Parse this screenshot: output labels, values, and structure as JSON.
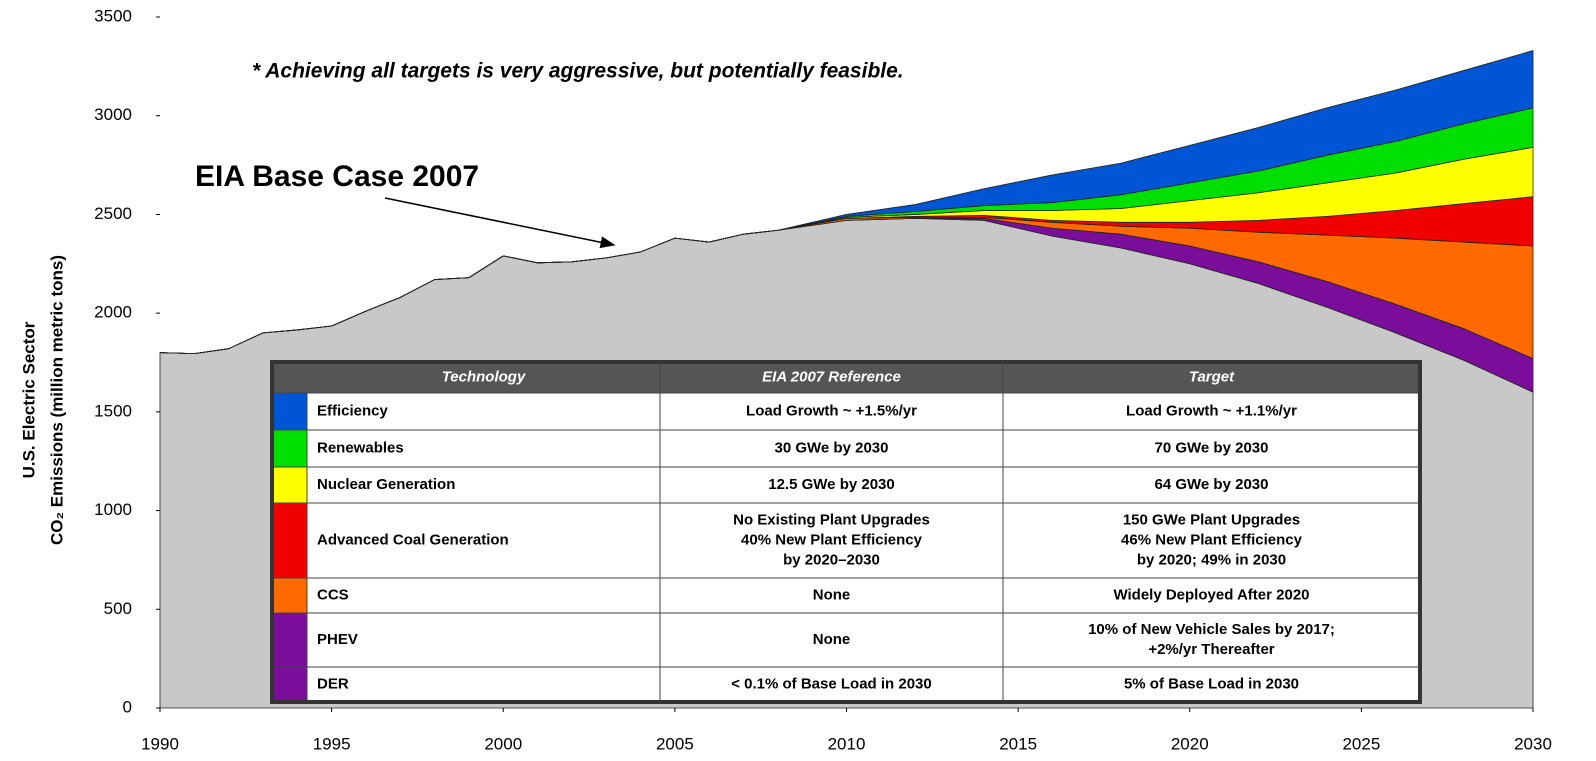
{
  "chart_data": {
    "type": "stacked_area",
    "ylabel": [
      "U.S. Electric Sector",
      "CO₂ Emissions (million metric tons)"
    ],
    "annotations": {
      "note": "* Achieving all targets is very aggressive, but potentially feasible.",
      "base_case": "EIA Base Case 2007"
    },
    "xlim": [
      1990,
      2030
    ],
    "xticks": [
      1990,
      1995,
      2000,
      2005,
      2010,
      2015,
      2020,
      2025,
      2030
    ],
    "ylim": [
      0,
      3500
    ],
    "yticks": [
      0,
      500,
      1000,
      1500,
      2000,
      2500,
      3000,
      3500
    ],
    "x": [
      1990,
      1991,
      1992,
      1993,
      1994,
      1995,
      1996,
      1997,
      1998,
      1999,
      2000,
      2001,
      2002,
      2003,
      2004,
      2005,
      2006,
      2007,
      2008,
      2010,
      2012,
      2014,
      2016,
      2018,
      2020,
      2022,
      2024,
      2026,
      2028,
      2030
    ],
    "series": [
      {
        "color": "#c8c8c8",
        "values": [
          1800,
          1795,
          1820,
          1900,
          1915,
          1935,
          2010,
          2080,
          2170,
          2180,
          2290,
          2255,
          2260,
          2280,
          2310,
          2380,
          2360,
          2400,
          2420,
          2470,
          2480,
          2470,
          2390,
          2330,
          2250,
          2150,
          2030,
          1900,
          1760,
          1600
        ]
      },
      {
        "color": "#7b0d9b",
        "values": [
          0,
          0,
          0,
          0,
          0,
          0,
          0,
          0,
          0,
          0,
          0,
          0,
          0,
          0,
          0,
          0,
          0,
          0,
          0,
          0,
          0,
          10,
          40,
          70,
          90,
          110,
          130,
          145,
          160,
          170
        ]
      },
      {
        "color": "#ff6a00",
        "values": [
          0,
          0,
          0,
          0,
          0,
          0,
          0,
          0,
          0,
          0,
          0,
          0,
          0,
          0,
          0,
          0,
          0,
          0,
          0,
          10,
          5,
          5,
          30,
          40,
          90,
          150,
          235,
          335,
          440,
          570
        ]
      },
      {
        "color": "#f00000",
        "values": [
          0,
          0,
          0,
          0,
          0,
          0,
          0,
          0,
          0,
          0,
          0,
          0,
          0,
          0,
          0,
          0,
          0,
          0,
          0,
          0,
          5,
          10,
          10,
          20,
          30,
          60,
          95,
          140,
          195,
          250
        ]
      },
      {
        "color": "#ffff00",
        "values": [
          0,
          0,
          0,
          0,
          0,
          0,
          0,
          0,
          0,
          0,
          0,
          0,
          0,
          0,
          0,
          0,
          0,
          0,
          0,
          5,
          10,
          25,
          50,
          70,
          110,
          140,
          170,
          190,
          225,
          250
        ]
      },
      {
        "color": "#00e000",
        "values": [
          0,
          0,
          0,
          0,
          0,
          0,
          0,
          0,
          0,
          0,
          0,
          0,
          0,
          0,
          0,
          0,
          0,
          0,
          0,
          5,
          15,
          25,
          40,
          70,
          90,
          110,
          140,
          160,
          180,
          200
        ]
      },
      {
        "color": "#0055d4",
        "values": [
          0,
          0,
          0,
          0,
          0,
          0,
          0,
          0,
          0,
          0,
          0,
          0,
          0,
          0,
          0,
          0,
          0,
          0,
          0,
          10,
          35,
          85,
          140,
          160,
          190,
          220,
          240,
          260,
          270,
          290
        ]
      }
    ],
    "table": {
      "header": [
        "Technology",
        "EIA 2007 Reference",
        "Target"
      ],
      "rows": [
        {
          "color": "#0055d4",
          "technology": "Efficiency",
          "reference": [
            "Load Growth ~ +1.5%/yr"
          ],
          "target": [
            "Load Growth ~ +1.1%/yr"
          ]
        },
        {
          "color": "#00e000",
          "technology": "Renewables",
          "reference": [
            "30 GWe by 2030"
          ],
          "target": [
            "70 GWe by 2030"
          ]
        },
        {
          "color": "#ffff00",
          "technology": "Nuclear Generation",
          "reference": [
            "12.5 GWe by 2030"
          ],
          "target": [
            "64 GWe by 2030"
          ]
        },
        {
          "color": "#f00000",
          "technology": "Advanced Coal Generation",
          "reference": [
            "No Existing Plant Upgrades",
            "40% New Plant Efficiency",
            "by 2020–2030"
          ],
          "target": [
            "150 GWe Plant Upgrades",
            "46% New Plant Efficiency",
            "by 2020; 49% in 2030"
          ]
        },
        {
          "color": "#ff6a00",
          "technology": "CCS",
          "reference": [
            "None"
          ],
          "target": [
            "Widely Deployed After 2020"
          ]
        },
        {
          "color": "#7b0d9b",
          "technology": "PHEV",
          "reference": [
            "None"
          ],
          "target": [
            "10% of New Vehicle Sales by 2017;",
            "+2%/yr Thereafter"
          ]
        },
        {
          "color": "#7b0d9b",
          "technology": "DER",
          "reference": [
            "< 0.1% of Base Load in 2030"
          ],
          "target": [
            "5% of Base Load in 2030"
          ]
        }
      ]
    }
  }
}
